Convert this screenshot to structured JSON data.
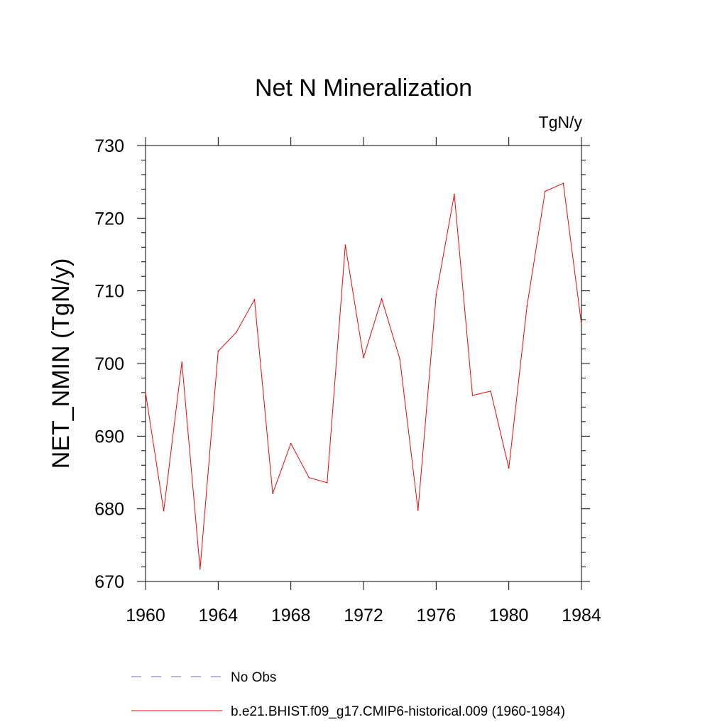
{
  "chart_data": {
    "type": "line",
    "title": "Net N Mineralization",
    "units": "TgN/y",
    "xlabel": "",
    "ylabel": "NET_NMIN  (TgN/y)",
    "xlim": [
      1960,
      1984
    ],
    "ylim": [
      670,
      730
    ],
    "xticks": [
      1960,
      1964,
      1968,
      1972,
      1976,
      1980,
      1984
    ],
    "yticks": [
      670,
      680,
      690,
      700,
      710,
      720,
      730
    ],
    "grid": false,
    "legend_position": "bottom",
    "series": [
      {
        "name": "b.e21.BHIST.f09_g17.CMIP6-historical.009 (1960-1984)",
        "color": "#ff0000",
        "style": "solid",
        "x": [
          1960,
          1961,
          1962,
          1963,
          1964,
          1965,
          1966,
          1967,
          1968,
          1969,
          1970,
          1971,
          1972,
          1973,
          1974,
          1975,
          1976,
          1977,
          1978,
          1979,
          1980,
          1981,
          1982,
          1983,
          1984
        ],
        "values": [
          696.0,
          679.7,
          700.2,
          671.7,
          701.7,
          704.3,
          708.8,
          682.1,
          689.0,
          684.3,
          683.6,
          716.3,
          700.8,
          708.9,
          700.6,
          679.8,
          709.4,
          723.3,
          695.6,
          696.2,
          685.6,
          707.9,
          723.7,
          724.8,
          705.4
        ]
      }
    ],
    "legend": [
      {
        "label": "No Obs",
        "color": "#6a6adf",
        "style": "dashed"
      },
      {
        "label": "b.e21.BHIST.f09_g17.CMIP6-historical.009 (1960-1984)",
        "color": "#ff0000",
        "style": "solid"
      }
    ]
  }
}
